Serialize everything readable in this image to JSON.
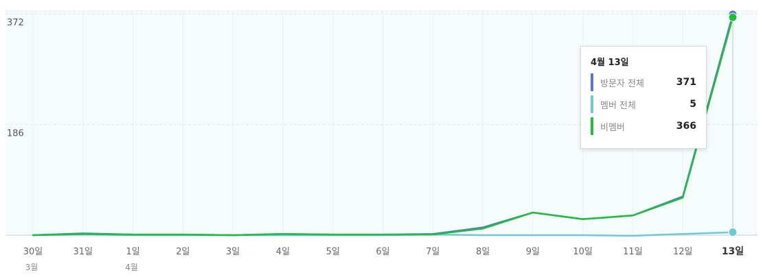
{
  "chart_data": {
    "type": "line",
    "x": [
      "30일",
      "31일",
      "1일",
      "2일",
      "3일",
      "4일",
      "5일",
      "6일",
      "7일",
      "8일",
      "9일",
      "10일",
      "11일",
      "12일",
      "13일"
    ],
    "month_labels": [
      {
        "index": 0,
        "label": "3월"
      },
      {
        "index": 2,
        "label": "4월"
      }
    ],
    "active_index": 14,
    "y_ticks": [
      186,
      372
    ],
    "ylim": [
      0,
      372
    ],
    "grid": true,
    "series": [
      {
        "name": "방문자 전체",
        "color": "#5a75d6",
        "values": [
          0,
          3,
          1,
          1,
          0,
          2,
          1,
          1,
          2,
          13,
          38,
          27,
          33,
          65,
          371
        ]
      },
      {
        "name": "멤버 전체",
        "color": "#6cc9d8",
        "values": [
          0,
          1,
          0,
          0,
          0,
          0,
          0,
          0,
          1,
          0,
          0,
          0,
          -1,
          2,
          5
        ]
      },
      {
        "name": "비멤버",
        "color": "#1fbf3a",
        "values": [
          0,
          2,
          1,
          1,
          0,
          2,
          1,
          1,
          1,
          11,
          38,
          27,
          33,
          63,
          366
        ]
      }
    ],
    "tooltip": {
      "title": "4월 13일",
      "rows": [
        {
          "name": "방문자 전체",
          "value": "371",
          "color": "#5a75d6"
        },
        {
          "name": "멤버 전체",
          "value": "5",
          "color": "#6cc9d8"
        },
        {
          "name": "비멤버",
          "value": "366",
          "color": "#1fbf3a"
        }
      ]
    }
  }
}
